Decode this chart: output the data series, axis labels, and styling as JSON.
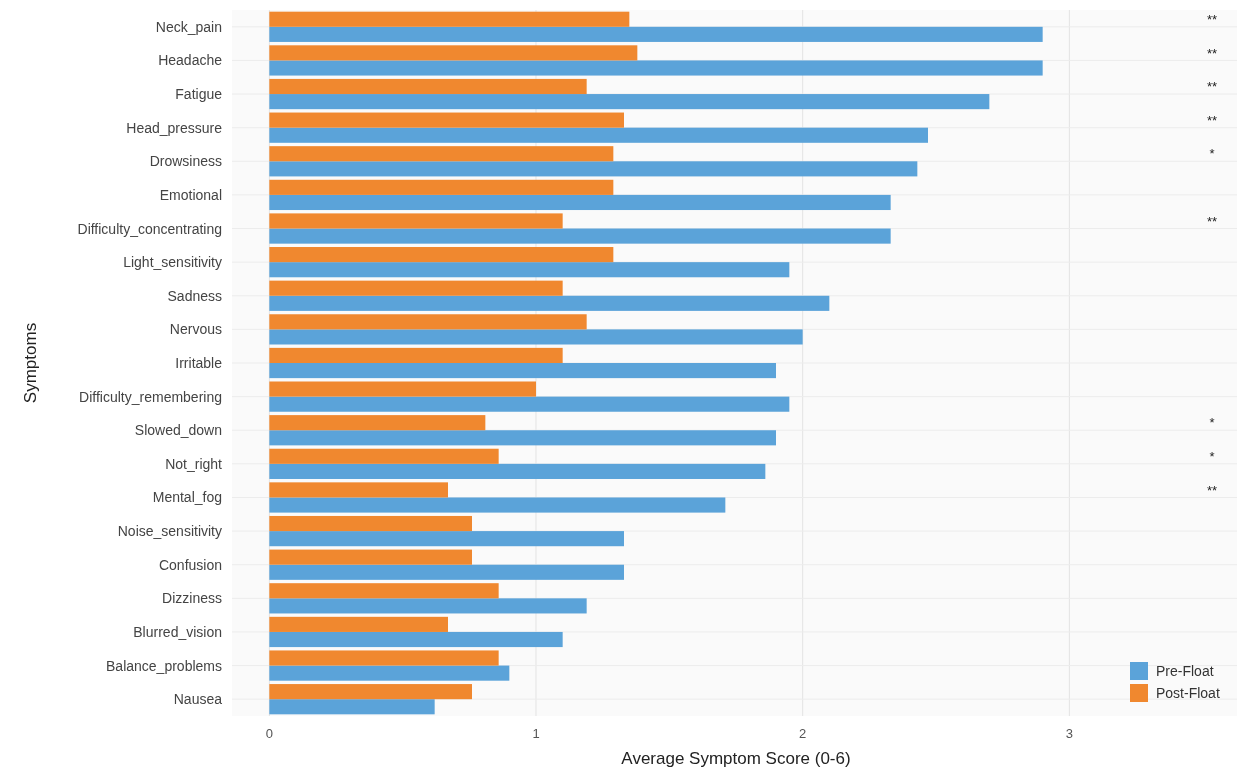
{
  "chart_data": {
    "type": "bar",
    "orientation": "horizontal",
    "xlabel": "Average Symptom Score (0-6)",
    "ylabel": "Symptoms",
    "categories": [
      "Neck_pain",
      "Headache",
      "Fatigue",
      "Head_pressure",
      "Drowsiness",
      "Emotional",
      "Difficulty_concentrating",
      "Light_sensitivity",
      "Sadness",
      "Nervous",
      "Irritable",
      "Difficulty_remembering",
      "Slowed_down",
      "Not_right",
      "Mental_fog",
      "Noise_sensitivity",
      "Confusion",
      "Dizziness",
      "Blurred_vision",
      "Balance_problems",
      "Nausea"
    ],
    "series": [
      {
        "name": "Pre-Float",
        "color": "#5ba3d9",
        "values": [
          2.9,
          2.9,
          2.7,
          2.47,
          2.43,
          2.33,
          2.33,
          1.95,
          2.1,
          2.0,
          1.9,
          1.95,
          1.9,
          1.86,
          1.71,
          1.33,
          1.33,
          1.19,
          1.1,
          0.9,
          0.62
        ]
      },
      {
        "name": "Post-Float",
        "color": "#f0882f",
        "values": [
          1.35,
          1.38,
          1.19,
          1.33,
          1.29,
          1.29,
          1.1,
          1.29,
          1.1,
          1.19,
          1.1,
          1.0,
          0.81,
          0.86,
          0.67,
          0.76,
          0.76,
          0.86,
          0.67,
          0.86,
          0.76
        ],
        "value_labels": [
          "**",
          "**",
          "**",
          "**",
          "*",
          null,
          "**",
          null,
          null,
          null,
          null,
          null,
          "*",
          "*",
          "**",
          null,
          null,
          null,
          null,
          null,
          null
        ]
      }
    ],
    "xlim": [
      -0.14,
      3.64
    ],
    "xticks": [
      0,
      1,
      2,
      3
    ],
    "grid": true,
    "legend": "bottom right"
  }
}
